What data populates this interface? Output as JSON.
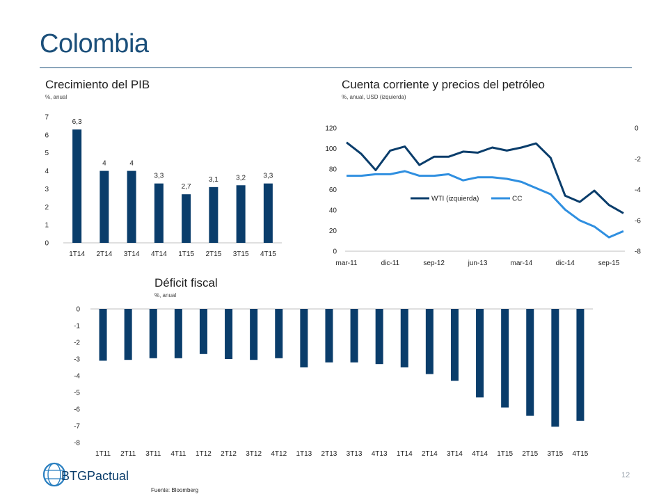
{
  "slide": {
    "title": "Colombia",
    "source": "Fuente: Bloomberg",
    "page_number": "12",
    "logo_text": "BTGPactual"
  },
  "colors": {
    "navy": "#0a3d6b",
    "light_blue": "#2f8fe0",
    "title_blue": "#1b4f7a"
  },
  "chart_data": [
    {
      "id": "gdp",
      "type": "bar",
      "title": "Crecimiento del PIB",
      "subtitle": "%, anual",
      "categories": [
        "1T14",
        "2T14",
        "3T14",
        "4T14",
        "1T15",
        "2T15",
        "3T15",
        "4T15"
      ],
      "values": [
        6.3,
        4,
        4,
        3.3,
        2.7,
        3.1,
        3.2,
        3.3
      ],
      "value_labels": [
        "6,3",
        "4",
        "4",
        "3,3",
        "2,7",
        "3,1",
        "3,2",
        "3,3"
      ],
      "ylim": [
        0,
        7
      ],
      "yticks": [
        "0",
        "1",
        "2",
        "3",
        "4",
        "5",
        "6",
        "7"
      ],
      "grid": false
    },
    {
      "id": "current-account",
      "type": "line",
      "title": "Cuenta corriente y precios del petróleo",
      "subtitle": "%, anual, USD (izquierda)",
      "xticks": [
        "mar-11",
        "dic-11",
        "sep-12",
        "jun-13",
        "mar-14",
        "dic-14",
        "sep-15"
      ],
      "ylim_left": [
        0,
        120
      ],
      "yticks_left": [
        "0",
        "20",
        "40",
        "60",
        "80",
        "100",
        "120"
      ],
      "ylim_right": [
        -8,
        0
      ],
      "yticks_right": [
        "-8",
        "-6",
        "-4",
        "-2",
        "0"
      ],
      "series": [
        {
          "name": "WTI (izquierda)",
          "axis": "left",
          "x": [
            "mar-11",
            "jun-11",
            "sep-11",
            "dic-11",
            "mar-12",
            "jun-12",
            "sep-12",
            "dic-12",
            "mar-13",
            "jun-13",
            "sep-13",
            "dic-13",
            "mar-14",
            "jun-14",
            "sep-14",
            "dic-14",
            "mar-15",
            "jun-15",
            "sep-15",
            "dic-15"
          ],
          "values": [
            106,
            95,
            79,
            98,
            102,
            84,
            92,
            92,
            97,
            96,
            101,
            98,
            101,
            105,
            91,
            54,
            48,
            59,
            45,
            37
          ]
        },
        {
          "name": "CC",
          "axis": "right",
          "x": [
            "mar-11",
            "jun-11",
            "sep-11",
            "dic-11",
            "mar-12",
            "jun-12",
            "sep-12",
            "dic-12",
            "mar-13",
            "jun-13",
            "sep-13",
            "dic-13",
            "mar-14",
            "jun-14",
            "sep-14",
            "dic-14",
            "mar-15",
            "jun-15",
            "sep-15",
            "dic-15"
          ],
          "values": [
            -3.1,
            -3.1,
            -3.0,
            -3.0,
            -2.8,
            -3.1,
            -3.1,
            -3.0,
            -3.4,
            -3.2,
            -3.2,
            -3.3,
            -3.5,
            -3.9,
            -4.3,
            -5.3,
            -6.0,
            -6.4,
            -7.1,
            -6.7
          ]
        }
      ],
      "legend": "center-right",
      "grid": false
    },
    {
      "id": "fiscal",
      "type": "bar",
      "title": "Déficit fiscal",
      "subtitle": "%, anual",
      "categories": [
        "1T11",
        "2T11",
        "3T11",
        "4T11",
        "1T12",
        "2T12",
        "3T12",
        "4T12",
        "1T13",
        "2T13",
        "3T13",
        "4T13",
        "1T14",
        "2T14",
        "3T14",
        "4T14",
        "1T15",
        "2T15",
        "3T15",
        "4T15"
      ],
      "values": [
        -3.1,
        -3.05,
        -2.95,
        -2.95,
        -2.7,
        -3.0,
        -3.05,
        -2.95,
        -3.5,
        -3.2,
        -3.2,
        -3.3,
        -3.5,
        -3.9,
        -4.3,
        -5.3,
        -5.9,
        -6.4,
        -7.05,
        -6.7
      ],
      "ylim": [
        -8,
        0
      ],
      "yticks": [
        "0",
        "-1",
        "-2",
        "-3",
        "-4",
        "-5",
        "-6",
        "-7",
        "-8"
      ],
      "grid": false
    }
  ]
}
